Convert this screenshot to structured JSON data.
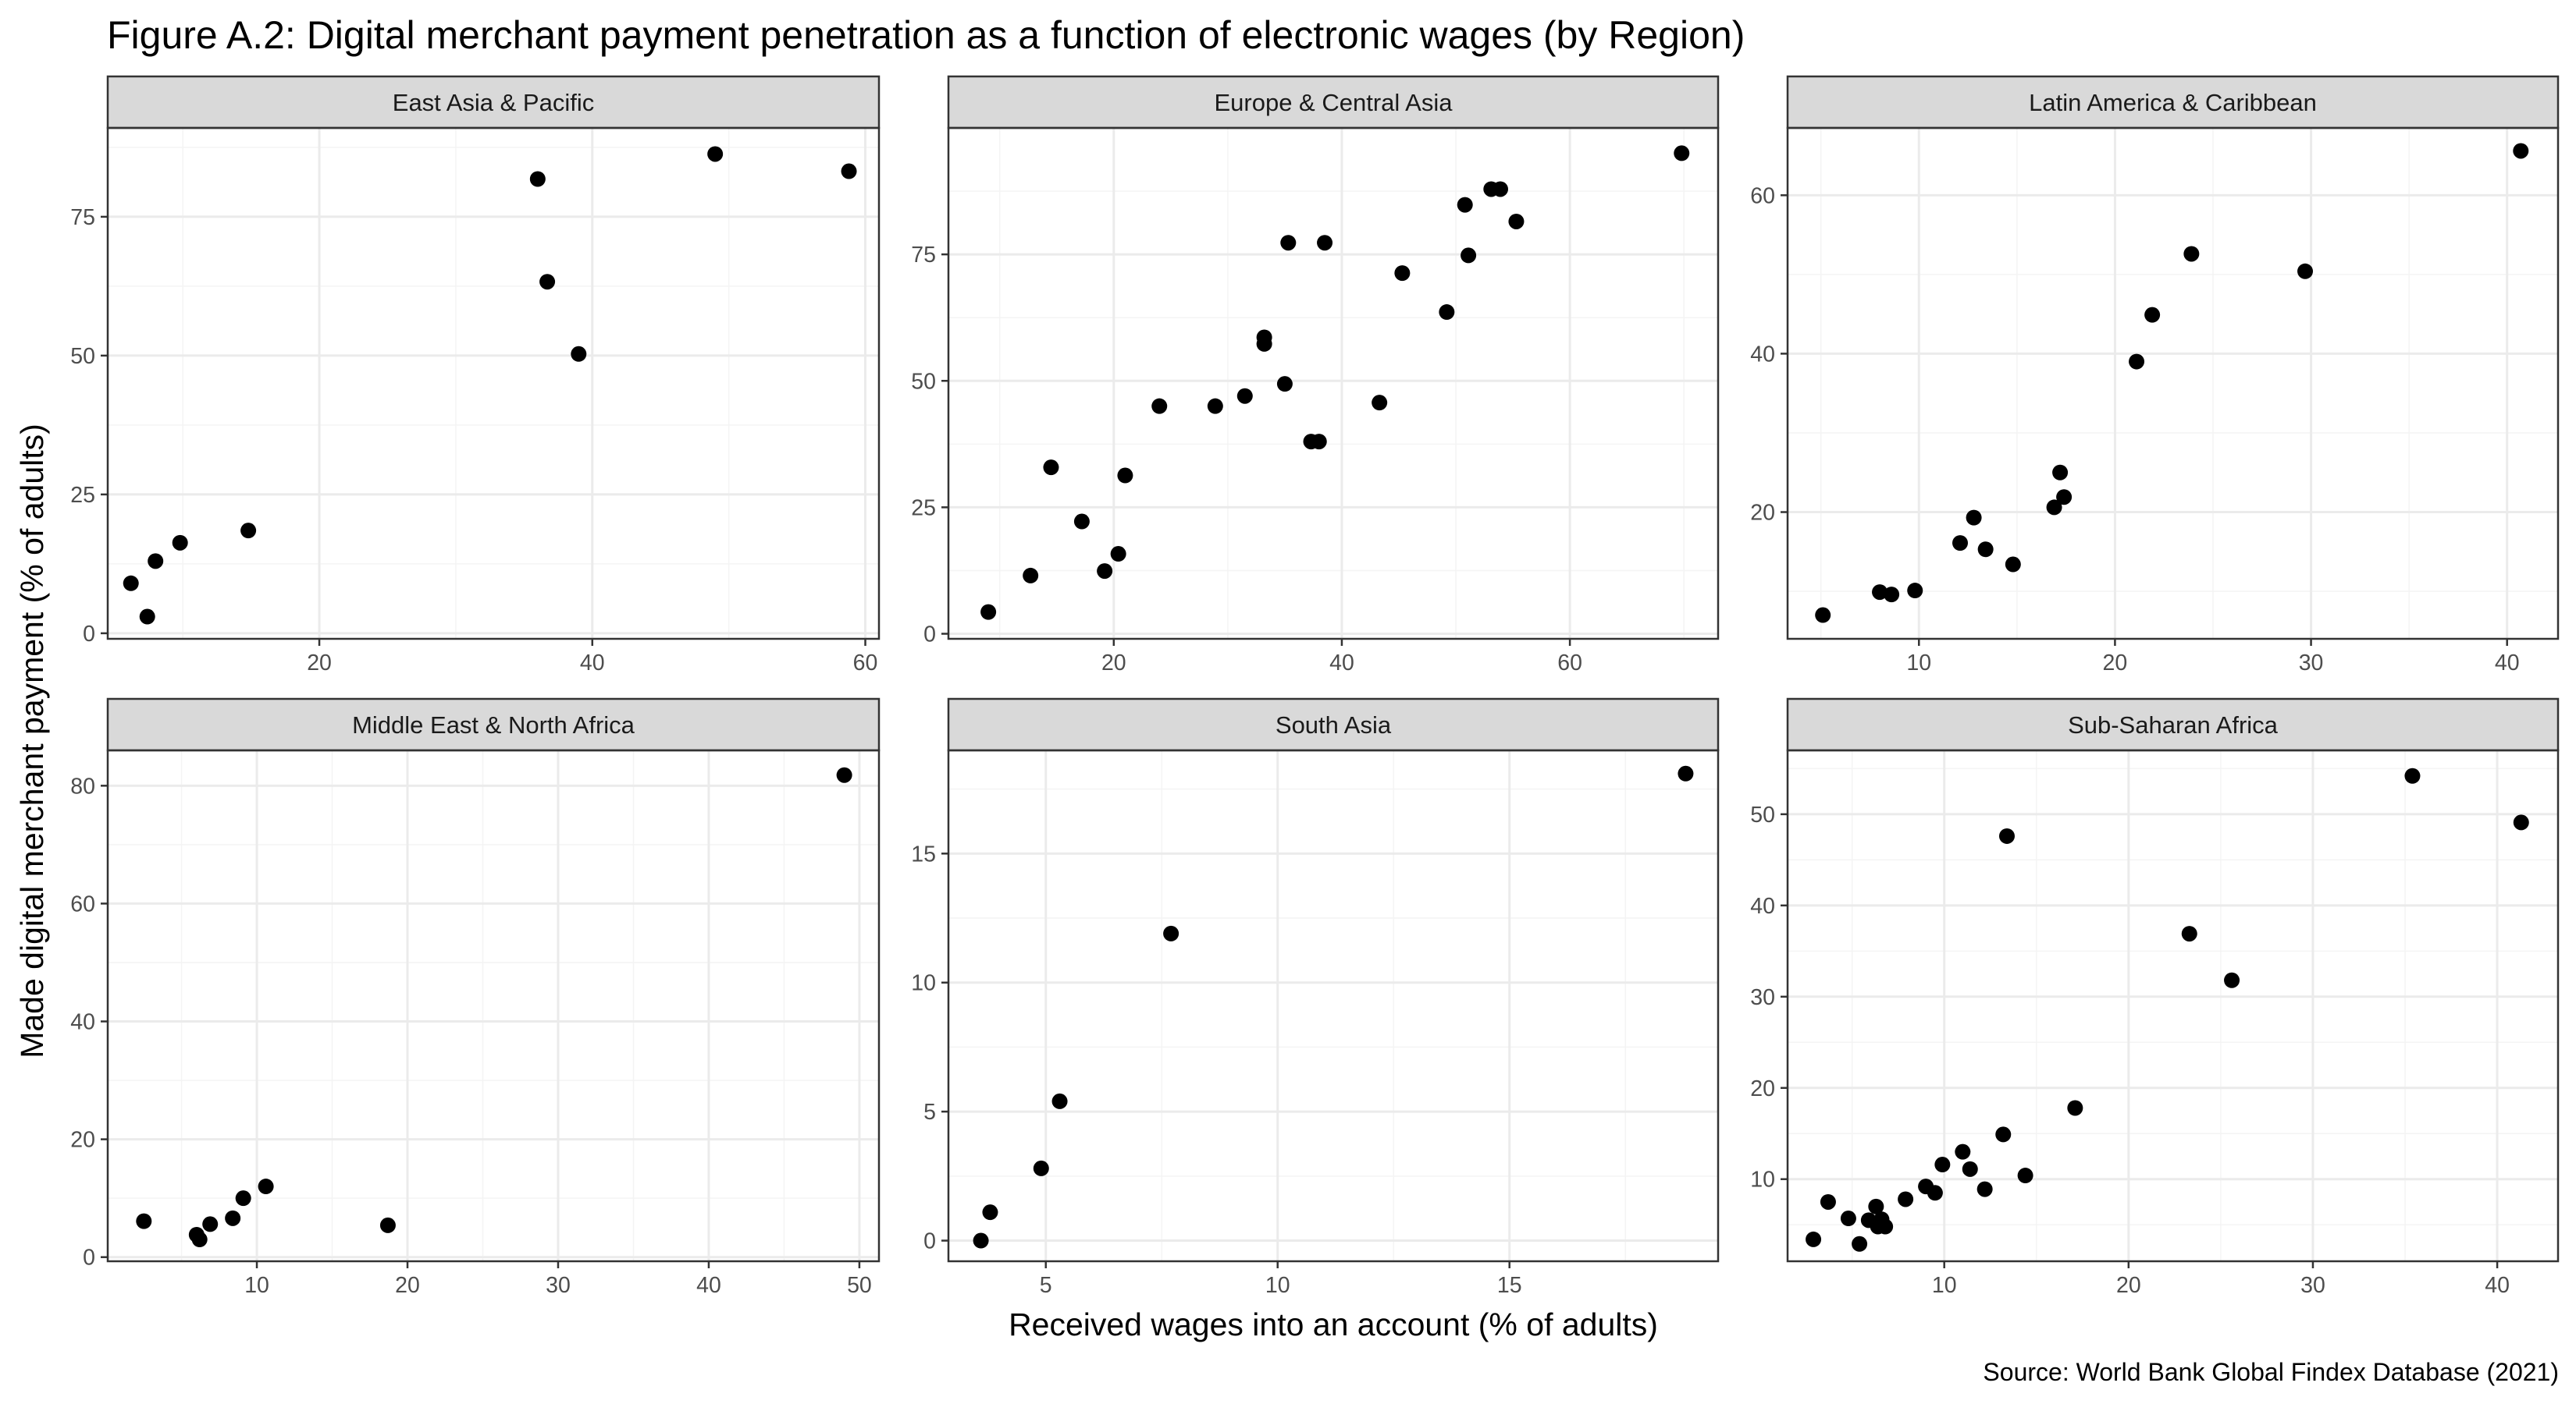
{
  "title": "Figure A.2: Digital merchant payment penetration as a function of electronic wages (by Region)",
  "xlabel": "Received wages into an account (% of adults)",
  "ylabel": "Made digital merchant payment (% of adults)",
  "source": "Source: World Bank Global Findex Database (2021)",
  "colors": {
    "point": "#000000",
    "panel_border": "#333333",
    "strip_fill": "#d9d9d9",
    "grid_major": "#ebebeb",
    "grid_minor": "#f4f4f4",
    "tick_label": "#4d4d4d"
  },
  "chart_data": [
    {
      "type": "scatter",
      "title": "East Asia & Pacific",
      "grid": true,
      "xlim": [
        4.5,
        61
      ],
      "ylim": [
        -1,
        91
      ],
      "xticks": [
        20,
        40,
        60
      ],
      "yticks": [
        0,
        25,
        50,
        75
      ],
      "points": [
        {
          "x": 6.2,
          "y": 9
        },
        {
          "x": 7.4,
          "y": 3
        },
        {
          "x": 8.0,
          "y": 13
        },
        {
          "x": 9.8,
          "y": 16.3
        },
        {
          "x": 14.8,
          "y": 18.5
        },
        {
          "x": 36.0,
          "y": 81.8
        },
        {
          "x": 36.7,
          "y": 63.3
        },
        {
          "x": 39.0,
          "y": 50.3
        },
        {
          "x": 49.0,
          "y": 86.3
        },
        {
          "x": 58.8,
          "y": 83.2
        }
      ]
    },
    {
      "type": "scatter",
      "title": "Europe & Central Asia",
      "grid": true,
      "xlim": [
        5.5,
        73
      ],
      "ylim": [
        -1,
        100
      ],
      "xticks": [
        20,
        40,
        60
      ],
      "yticks": [
        0,
        25,
        50,
        75
      ],
      "points": [
        {
          "x": 9.0,
          "y": 4.3
        },
        {
          "x": 12.7,
          "y": 11.5
        },
        {
          "x": 14.5,
          "y": 32.9
        },
        {
          "x": 17.2,
          "y": 22.2
        },
        {
          "x": 19.2,
          "y": 12.4
        },
        {
          "x": 20.4,
          "y": 15.8
        },
        {
          "x": 21.0,
          "y": 31.3
        },
        {
          "x": 24.0,
          "y": 45.0
        },
        {
          "x": 28.9,
          "y": 45.0
        },
        {
          "x": 31.5,
          "y": 47.0
        },
        {
          "x": 33.2,
          "y": 58.6
        },
        {
          "x": 33.2,
          "y": 57.3
        },
        {
          "x": 35.0,
          "y": 49.4
        },
        {
          "x": 35.3,
          "y": 77.3
        },
        {
          "x": 37.3,
          "y": 38.0
        },
        {
          "x": 38.0,
          "y": 38.0
        },
        {
          "x": 38.5,
          "y": 77.3
        },
        {
          "x": 43.3,
          "y": 45.7
        },
        {
          "x": 45.3,
          "y": 71.3
        },
        {
          "x": 49.2,
          "y": 63.6
        },
        {
          "x": 50.8,
          "y": 84.8
        },
        {
          "x": 51.1,
          "y": 74.8
        },
        {
          "x": 53.1,
          "y": 87.9
        },
        {
          "x": 53.9,
          "y": 87.9
        },
        {
          "x": 55.3,
          "y": 81.5
        },
        {
          "x": 69.8,
          "y": 95.0
        }
      ]
    },
    {
      "type": "scatter",
      "title": "Latin America & Caribbean",
      "grid": true,
      "xlim": [
        3.3,
        42.6
      ],
      "ylim": [
        4,
        68.5
      ],
      "xticks": [
        10,
        20,
        30,
        40
      ],
      "yticks": [
        20,
        40,
        60
      ],
      "points": [
        {
          "x": 5.1,
          "y": 7.0
        },
        {
          "x": 8.0,
          "y": 9.9
        },
        {
          "x": 8.6,
          "y": 9.6
        },
        {
          "x": 9.8,
          "y": 10.1
        },
        {
          "x": 12.1,
          "y": 16.1
        },
        {
          "x": 12.8,
          "y": 19.3
        },
        {
          "x": 13.4,
          "y": 15.3
        },
        {
          "x": 14.8,
          "y": 13.4
        },
        {
          "x": 16.9,
          "y": 20.6
        },
        {
          "x": 17.2,
          "y": 25.0
        },
        {
          "x": 17.4,
          "y": 21.9
        },
        {
          "x": 21.1,
          "y": 39.0
        },
        {
          "x": 21.9,
          "y": 44.9
        },
        {
          "x": 23.9,
          "y": 52.6
        },
        {
          "x": 29.7,
          "y": 50.4
        },
        {
          "x": 40.7,
          "y": 65.6
        }
      ]
    },
    {
      "type": "scatter",
      "title": "Middle East & North Africa",
      "grid": true,
      "xlim": [
        0.1,
        51.3
      ],
      "ylim": [
        -0.7,
        86
      ],
      "xticks": [
        10,
        20,
        30,
        40,
        50
      ],
      "yticks": [
        0,
        20,
        40,
        60,
        80
      ],
      "points": [
        {
          "x": 2.5,
          "y": 6.1
        },
        {
          "x": 6.0,
          "y": 3.8
        },
        {
          "x": 6.2,
          "y": 3.0
        },
        {
          "x": 6.9,
          "y": 5.6
        },
        {
          "x": 8.4,
          "y": 6.6
        },
        {
          "x": 9.1,
          "y": 10.0
        },
        {
          "x": 10.6,
          "y": 12.0
        },
        {
          "x": 18.7,
          "y": 5.4
        },
        {
          "x": 49.0,
          "y": 81.8
        }
      ]
    },
    {
      "type": "scatter",
      "title": "South Asia",
      "grid": true,
      "xlim": [
        2.9,
        19.5
      ],
      "ylim": [
        -0.8,
        19.0
      ],
      "xticks": [
        5,
        10,
        15
      ],
      "yticks": [
        0,
        5,
        10,
        15
      ],
      "points": [
        {
          "x": 3.6,
          "y": 0.0
        },
        {
          "x": 3.8,
          "y": 1.1
        },
        {
          "x": 4.9,
          "y": 2.8
        },
        {
          "x": 5.3,
          "y": 5.4
        },
        {
          "x": 7.7,
          "y": 11.9
        },
        {
          "x": 18.8,
          "y": 18.1
        }
      ]
    },
    {
      "type": "scatter",
      "title": "Sub-Saharan Africa",
      "grid": true,
      "xlim": [
        1.5,
        43.3
      ],
      "ylim": [
        1,
        57
      ],
      "xticks": [
        10,
        20,
        30,
        40
      ],
      "yticks": [
        10,
        20,
        30,
        40,
        50
      ],
      "points": [
        {
          "x": 2.9,
          "y": 3.4
        },
        {
          "x": 3.7,
          "y": 7.5
        },
        {
          "x": 4.8,
          "y": 5.7
        },
        {
          "x": 5.4,
          "y": 2.9
        },
        {
          "x": 5.9,
          "y": 5.5
        },
        {
          "x": 6.3,
          "y": 7.0
        },
        {
          "x": 6.4,
          "y": 4.8
        },
        {
          "x": 6.6,
          "y": 5.6
        },
        {
          "x": 6.8,
          "y": 4.8
        },
        {
          "x": 7.9,
          "y": 7.8
        },
        {
          "x": 9.0,
          "y": 9.2
        },
        {
          "x": 9.5,
          "y": 8.5
        },
        {
          "x": 9.9,
          "y": 11.6
        },
        {
          "x": 11.0,
          "y": 13.0
        },
        {
          "x": 11.4,
          "y": 11.1
        },
        {
          "x": 12.2,
          "y": 8.9
        },
        {
          "x": 13.2,
          "y": 14.9
        },
        {
          "x": 13.4,
          "y": 47.6
        },
        {
          "x": 14.4,
          "y": 10.4
        },
        {
          "x": 17.1,
          "y": 17.8
        },
        {
          "x": 23.3,
          "y": 36.9
        },
        {
          "x": 25.6,
          "y": 31.8
        },
        {
          "x": 35.4,
          "y": 54.2
        },
        {
          "x": 41.3,
          "y": 49.1
        }
      ]
    }
  ]
}
